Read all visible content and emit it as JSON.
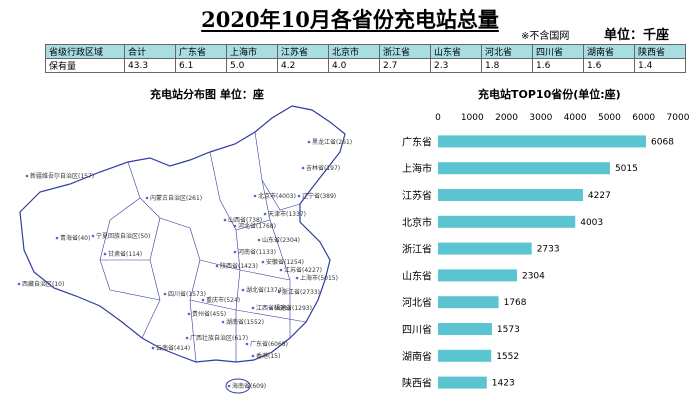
{
  "header": {
    "title": "2020年10月各省份充电站总量",
    "note": "※不含国网",
    "unit": "单位：千座"
  },
  "table": {
    "row_label_header": "省级行政区域",
    "columns": [
      "合计",
      "广东省",
      "上海市",
      "江苏省",
      "北京市",
      "浙江省",
      "山东省",
      "河北省",
      "四川省",
      "湖南省",
      "陕西省"
    ],
    "row_label": "保有量",
    "values": [
      "43.3",
      "6.1",
      "5.0",
      "4.2",
      "4.0",
      "2.7",
      "2.3",
      "1.8",
      "1.6",
      "1.6",
      "1.4"
    ]
  },
  "map": {
    "title": "充电站分布图  单位：座",
    "labels": [
      "新疆维吾尔自治区(157)",
      "西藏自治区(10)",
      "青海省(40)",
      "甘肃省(114)",
      "宁夏回族自治区(50)",
      "内蒙古自治区(261)",
      "黑龙江省(261)",
      "吉林省(197)",
      "辽宁省(389)",
      "北京市(4003)",
      "天津市(1337)",
      "河北省(1768)",
      "山西省(738)",
      "山东省(2304)",
      "河南省(1133)",
      "陕西省(1423)",
      "江苏省(4227)",
      "上海市(5015)",
      "安徽省(1254)",
      "浙江省(2733)",
      "湖北省(1374)",
      "四川省(1573)",
      "重庆市(524)",
      "湖南省(1552)",
      "江西省(821)",
      "福建省(1293)",
      "贵州省(455)",
      "云南省(414)",
      "广西壮族自治区(617)",
      "广东省(6068)",
      "香港(15)",
      "海南省(609)"
    ]
  },
  "chart_data": {
    "type": "bar",
    "orientation": "horizontal",
    "title": "充电站TOP10省份(单位:座)",
    "categories": [
      "广东省",
      "上海市",
      "江苏省",
      "北京市",
      "浙江省",
      "山东省",
      "河北省",
      "四川省",
      "湖南省",
      "陕西省"
    ],
    "values": [
      6068,
      5015,
      4227,
      4003,
      2733,
      2304,
      1768,
      1573,
      1552,
      1423
    ],
    "xlim": [
      0,
      7000
    ],
    "xticks": [
      0,
      1000,
      2000,
      3000,
      4000,
      5000,
      6000,
      7000
    ],
    "bar_color": "#5bc4d1",
    "grid": false
  }
}
